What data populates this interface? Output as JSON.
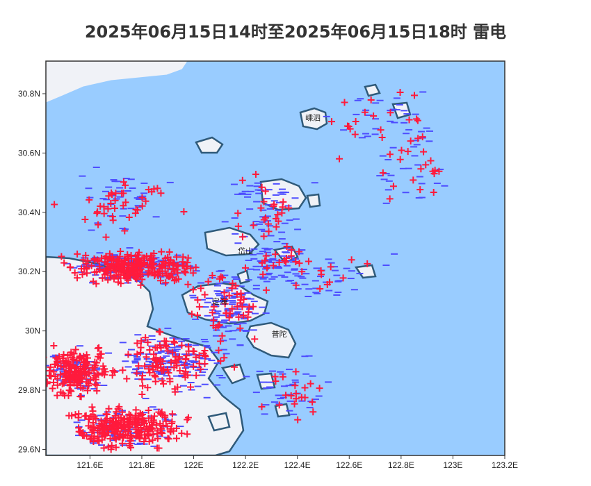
{
  "title": "2025年06月15日14时至2025年06月15日18时 雷电",
  "map": {
    "lon_range": [
      121.43,
      123.2
    ],
    "lat_range": [
      29.58,
      30.91
    ],
    "lon_ticks": [
      {
        "value": 121.6,
        "label": "121.6E"
      },
      {
        "value": 121.8,
        "label": "121.8E"
      },
      {
        "value": 122.0,
        "label": "122E"
      },
      {
        "value": 122.2,
        "label": "122.2E"
      },
      {
        "value": 122.4,
        "label": "122.4E"
      },
      {
        "value": 122.6,
        "label": "122.6E"
      },
      {
        "value": 122.8,
        "label": "122.8E"
      },
      {
        "value": 123.0,
        "label": "123E"
      },
      {
        "value": 123.2,
        "label": "123.2E"
      }
    ],
    "lat_ticks": [
      {
        "value": 30.8,
        "label": "30.8N"
      },
      {
        "value": 30.6,
        "label": "30.6N"
      },
      {
        "value": 30.4,
        "label": "30.4N"
      },
      {
        "value": 30.2,
        "label": "30.2N"
      },
      {
        "value": 30.0,
        "label": "30N"
      },
      {
        "value": 29.8,
        "label": "29.8N"
      },
      {
        "value": 29.6,
        "label": "29.6N"
      }
    ],
    "places": [
      {
        "name": "嵊泗",
        "lon": 122.46,
        "lat": 30.71
      },
      {
        "name": "岱山",
        "lon": 122.2,
        "lat": 30.26
      },
      {
        "name": "定海",
        "lon": 122.1,
        "lat": 30.09
      },
      {
        "name": "普陀",
        "lon": 122.33,
        "lat": 29.98
      }
    ],
    "colors": {
      "sea": "#99ccff",
      "land": "#f0f2f7",
      "coast": "#2f5a7a",
      "positive_strike": "#ff1a3c",
      "negative_strike": "#4d4dff"
    },
    "strike_symbols": {
      "positive": "+",
      "negative": "−"
    }
  }
}
